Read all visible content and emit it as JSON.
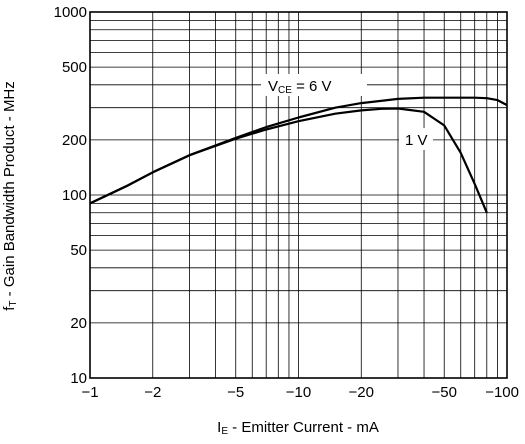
{
  "chart_data": {
    "type": "line",
    "xscale": "log",
    "yscale": "log",
    "xlim": [
      -1,
      -100
    ],
    "ylim": [
      10,
      1000
    ],
    "x_ticks": [
      {
        "value": -1,
        "label": "−1"
      },
      {
        "value": -2,
        "label": "−2"
      },
      {
        "value": -5,
        "label": "−5"
      },
      {
        "value": -10,
        "label": "−10"
      },
      {
        "value": -20,
        "label": "−20"
      },
      {
        "value": -50,
        "label": "−50"
      },
      {
        "value": -100,
        "label": "−100"
      }
    ],
    "y_ticks": [
      {
        "value": 10,
        "label": "10"
      },
      {
        "value": 20,
        "label": "20"
      },
      {
        "value": 50,
        "label": "50"
      },
      {
        "value": 100,
        "label": "100"
      },
      {
        "value": 200,
        "label": "200"
      },
      {
        "value": 500,
        "label": "500"
      },
      {
        "value": 1000,
        "label": "1000"
      }
    ],
    "xlabel": {
      "main": "I",
      "sub": "E",
      "rest": " - Emitter Current - mA"
    },
    "ylabel": {
      "main": "f",
      "sub": "T",
      "rest": " - Gain Bandwidth Product - MHz"
    },
    "grid": true,
    "series": [
      {
        "name": "VCE = 6 V",
        "label_parts": {
          "main": "V",
          "sub": "CE",
          "rest": " = 6 V"
        },
        "x": [
          -1,
          -1.5,
          -2,
          -3,
          -5,
          -7,
          -10,
          -15,
          -20,
          -30,
          -40,
          -50,
          -60,
          -70,
          -80,
          -90,
          -100
        ],
        "y": [
          90,
          112,
          133,
          165,
          205,
          235,
          265,
          300,
          318,
          335,
          340,
          340,
          340,
          340,
          338,
          330,
          310
        ]
      },
      {
        "name": "1 V",
        "label_parts": {
          "main": "1 V",
          "sub": "",
          "rest": ""
        },
        "x": [
          -1,
          -1.5,
          -2,
          -3,
          -5,
          -7,
          -10,
          -15,
          -20,
          -25,
          -30,
          -40,
          -50,
          -60,
          -70,
          -80
        ],
        "y": [
          90,
          112,
          133,
          165,
          203,
          228,
          253,
          278,
          290,
          296,
          297,
          285,
          240,
          170,
          115,
          80
        ]
      }
    ]
  }
}
